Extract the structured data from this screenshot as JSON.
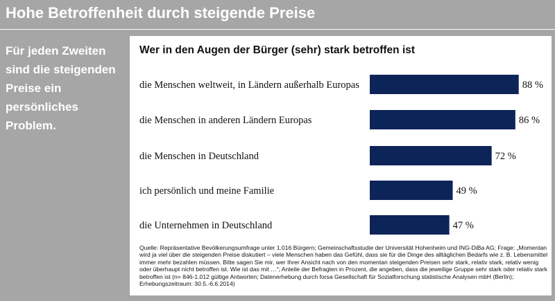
{
  "header": {
    "title": "Hohe Betroffenheit durch steigende Preise"
  },
  "side_note": "Für jeden Zweiten sind die steigenden Preise ein persönliches Problem.",
  "chart_data": {
    "type": "bar",
    "orientation": "horizontal",
    "title": "Wer in den Augen der Bürger (sehr) stark betroffen ist",
    "categories": [
      "die Menschen weltweit, in Ländern außerhalb Europas",
      "die Menschen in anderen Ländern Europas",
      "die Menschen in Deutschland",
      "ich persönlich und meine Familie",
      "die Unternehmen in Deutschland"
    ],
    "values": [
      88,
      86,
      72,
      49,
      47
    ],
    "value_labels": [
      "88 %",
      "86 %",
      "72 %",
      "49 %",
      "47 %"
    ],
    "xlim": [
      0,
      100
    ],
    "bar_color": "#0d2458",
    "grid": false,
    "legend": "none"
  },
  "source_text": "Quelle: Repräsentative Bevölkerungsumfrage unter 1.016 Bürgern; Gemeinschaftsstudie der Universität Hohenheim und ING-DiBa AG; Frage: „Momentan wird ja viel über die steigenden Preise diskutiert – viele Menschen haben das Gefühl, dass sie für die Dinge des alltäglichen Bedarfs wie z. B. Lebensmittel immer mehr bezahlen müssen. Bitte sagen Sie mir, wer Ihrer Ansicht nach von den momentan steigenden Preisen sehr stark, relativ stark, relativ wenig oder überhaupt nicht betroffen ist. Wie ist das mit …“; Anteile der Befragten in Prozent, die angeben, dass die jeweilige Gruppe sehr stark oder relativ stark betroffen ist (n= 846-1.012 gültige Antworten; Datenerhebung durch forsa Gesellschaft für Sozialforschung statistische Analysen mbH (Berlin); Erhebungszeitraum: 30.5.-6.6.2014)"
}
